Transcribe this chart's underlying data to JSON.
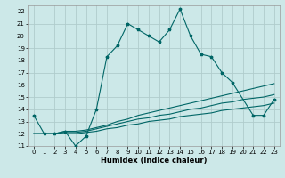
{
  "xlabel": "Humidex (Indice chaleur)",
  "bg_color": "#cce8e8",
  "grid_color": "#b0cccc",
  "line_color": "#006666",
  "xlim": [
    -0.5,
    23.5
  ],
  "ylim": [
    11,
    22.5
  ],
  "xticks": [
    0,
    1,
    2,
    3,
    4,
    5,
    6,
    7,
    8,
    9,
    10,
    11,
    12,
    13,
    14,
    15,
    16,
    17,
    18,
    19,
    20,
    21,
    22,
    23
  ],
  "yticks": [
    11,
    12,
    13,
    14,
    15,
    16,
    17,
    18,
    19,
    20,
    21,
    22
  ],
  "series1_x": [
    0,
    1,
    2,
    3,
    4,
    5,
    6,
    7,
    8,
    9,
    10,
    11,
    12,
    13,
    14,
    15,
    16,
    17,
    18,
    19,
    21,
    22,
    23
  ],
  "series1_y": [
    13.5,
    12.0,
    12.0,
    12.2,
    11.0,
    11.8,
    14.0,
    18.3,
    19.2,
    21.0,
    20.5,
    20.0,
    19.5,
    20.5,
    22.2,
    20.0,
    18.5,
    18.3,
    17.0,
    16.2,
    13.5,
    13.5,
    14.8
  ],
  "series2_x": [
    0,
    1,
    2,
    3,
    4,
    5,
    6,
    7,
    8,
    9,
    10,
    11,
    12,
    13,
    14,
    15,
    16,
    17,
    18,
    19,
    20,
    21,
    22,
    23
  ],
  "series2_y": [
    12.0,
    12.0,
    12.0,
    12.2,
    12.2,
    12.3,
    12.5,
    12.7,
    13.0,
    13.2,
    13.5,
    13.7,
    13.9,
    14.1,
    14.3,
    14.5,
    14.7,
    14.9,
    15.1,
    15.3,
    15.5,
    15.7,
    15.9,
    16.1
  ],
  "series3_x": [
    0,
    1,
    2,
    3,
    4,
    5,
    6,
    7,
    8,
    9,
    10,
    11,
    12,
    13,
    14,
    15,
    16,
    17,
    18,
    19,
    20,
    21,
    22,
    23
  ],
  "series3_y": [
    12.0,
    12.0,
    12.0,
    12.1,
    12.1,
    12.2,
    12.4,
    12.6,
    12.8,
    13.0,
    13.2,
    13.3,
    13.5,
    13.6,
    13.8,
    14.0,
    14.1,
    14.3,
    14.5,
    14.6,
    14.8,
    14.9,
    15.0,
    15.2
  ],
  "series4_x": [
    0,
    1,
    2,
    3,
    4,
    5,
    6,
    7,
    8,
    9,
    10,
    11,
    12,
    13,
    14,
    15,
    16,
    17,
    18,
    19,
    20,
    21,
    22,
    23
  ],
  "series4_y": [
    12.0,
    12.0,
    12.0,
    12.0,
    12.0,
    12.1,
    12.2,
    12.4,
    12.5,
    12.7,
    12.8,
    13.0,
    13.1,
    13.2,
    13.4,
    13.5,
    13.6,
    13.7,
    13.9,
    14.0,
    14.1,
    14.2,
    14.3,
    14.5
  ],
  "tick_fontsize": 5.0,
  "xlabel_fontsize": 6.0
}
